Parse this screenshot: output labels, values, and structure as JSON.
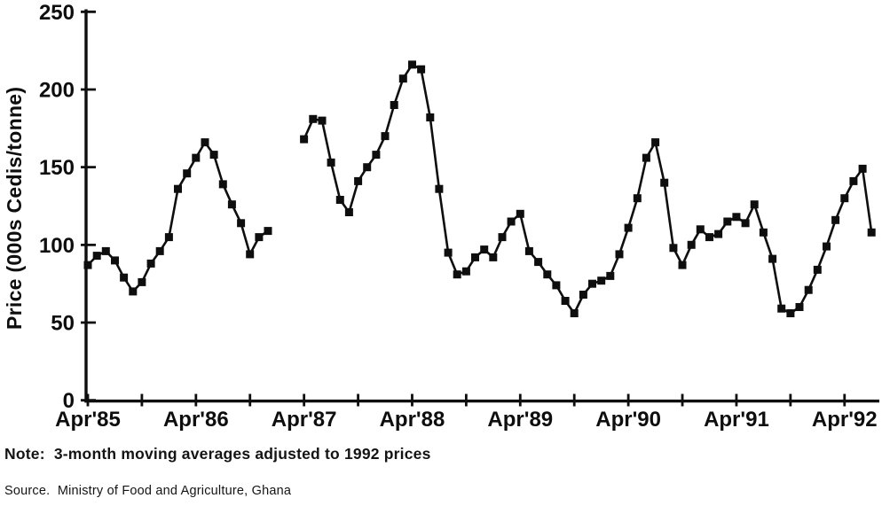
{
  "chart_data": {
    "type": "line",
    "title": "",
    "xlabel": "",
    "ylabel": "Price (000s Cedis/tonne)",
    "ylim": [
      0,
      250
    ],
    "yticks": [
      0,
      50,
      100,
      150,
      200,
      250
    ],
    "x_axis": {
      "start_label": "Apr'85",
      "tick_interval_months": 6,
      "tick_count": 15,
      "labeled_ticks": [
        "Apr'85",
        "Apr'86",
        "Apr'87",
        "Apr'88",
        "Apr'89",
        "Apr'90",
        "Apr'91",
        "Apr'92"
      ]
    },
    "marker": "filled-square",
    "line_color": "#0e0e0e",
    "background_color": "#ffffff",
    "grid": false,
    "legend": "none",
    "segments": [
      {
        "label": "segment-1",
        "start_month_index": 0,
        "values": [
          87,
          93,
          96,
          90,
          79,
          70,
          76,
          88,
          96,
          105,
          136,
          146,
          156,
          166,
          158,
          139,
          126,
          114,
          94,
          105,
          109
        ]
      },
      {
        "label": "segment-2",
        "start_month_index": 24,
        "values": [
          168,
          181,
          180,
          153,
          129,
          121,
          141,
          150,
          158,
          170,
          190,
          207,
          216,
          213,
          182,
          136,
          95,
          81,
          83,
          92,
          97,
          92,
          105,
          115,
          120,
          96,
          89,
          81,
          74,
          64,
          56,
          68,
          75,
          77,
          80,
          94,
          111,
          130,
          156,
          166,
          140,
          98,
          87,
          100,
          110,
          105,
          107,
          115,
          118,
          114,
          126,
          108,
          91,
          59,
          56,
          60,
          71,
          84,
          99,
          116,
          130,
          141,
          149,
          108
        ]
      }
    ]
  },
  "notes": {
    "note": "Note:  3-month moving averages adjusted to 1992 prices",
    "source": "Source.  Ministry of Food and Agriculture, Ghana"
  }
}
